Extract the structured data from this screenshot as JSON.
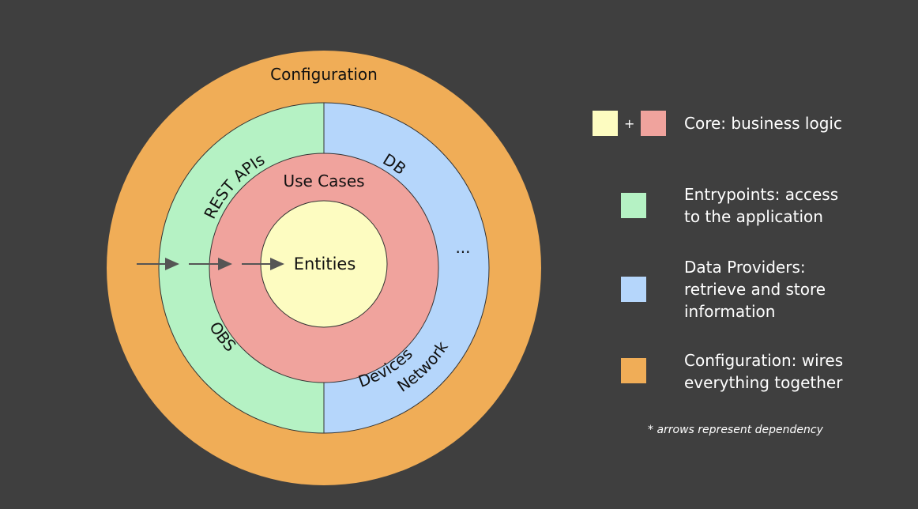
{
  "diagram": {
    "labels": {
      "configuration": "Configuration",
      "rest_apis": "REST APIs",
      "jobs": "JOBS",
      "db": "DB",
      "network_devices_line1": "Network",
      "network_devices_line2": "Devices",
      "ellipsis": "...",
      "use_cases": "Use Cases",
      "entities": "Entities"
    },
    "colors": {
      "background": "#3f3f3f",
      "configuration": "#f0ad57",
      "entrypoints": "#b5f2c4",
      "data_providers": "#b5d6fb",
      "use_cases": "#f0a39d",
      "entities": "#fdfcc1",
      "arrow": "#555555"
    }
  },
  "legend": {
    "core": {
      "text": "Core: business logic",
      "plus": "+"
    },
    "entrypoints": {
      "text": "Entrypoints: access\nto the application"
    },
    "data_providers": {
      "text": "Data Providers:\nretrieve and store\ninformation"
    },
    "configuration": {
      "text": "Configuration: wires\neverything together"
    }
  },
  "footnote": "* arrows represent dependency"
}
